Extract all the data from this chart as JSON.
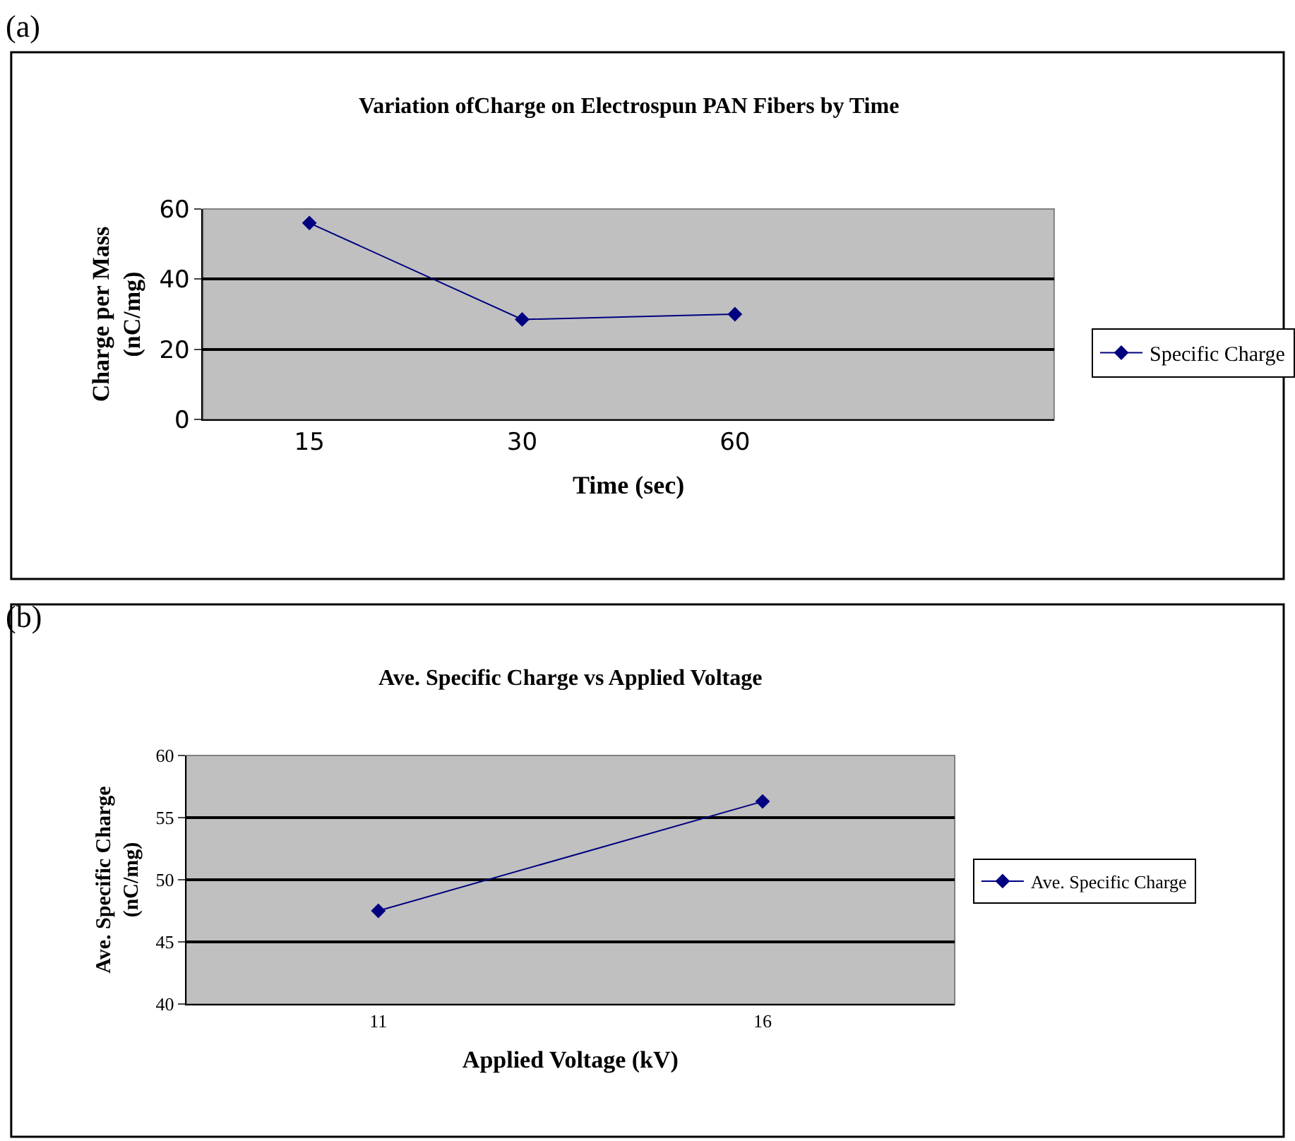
{
  "chart_data": [
    {
      "type": "line",
      "title": "Variation ofCharge on Electrospun PAN Fibers by Time",
      "xlabel": "Time (sec)",
      "ylabel": "Charge per Mass\n(nC/mg)",
      "categories": [
        "15",
        "30",
        "60",
        null
      ],
      "series": [
        {
          "name": "Specific Charge",
          "color": "#000080",
          "values": [
            56,
            28.5,
            30,
            null
          ]
        }
      ],
      "ylim": [
        0,
        60
      ],
      "yticks": [
        0,
        20,
        40,
        60
      ],
      "grid": "y",
      "legend": "right",
      "marker": "diamond",
      "line_style": "solid",
      "annotations": [
        "(a)"
      ]
    },
    {
      "type": "line",
      "title": "Ave. Specific Charge vs Applied Voltage",
      "xlabel": "Applied Voltage (kV)",
      "ylabel": "Ave. Specific Charge\n(nC/mg)",
      "categories": [
        "11",
        "16"
      ],
      "series": [
        {
          "name": "Ave. Specific Charge",
          "color": "#000080",
          "values": [
            47.5,
            56.3
          ]
        }
      ],
      "ylim": [
        40,
        60
      ],
      "yticks": [
        40,
        45,
        50,
        55,
        60
      ],
      "grid": "y",
      "legend": "right",
      "marker": "diamond",
      "line_style": "solid",
      "annotations": [
        "(b)"
      ]
    }
  ]
}
